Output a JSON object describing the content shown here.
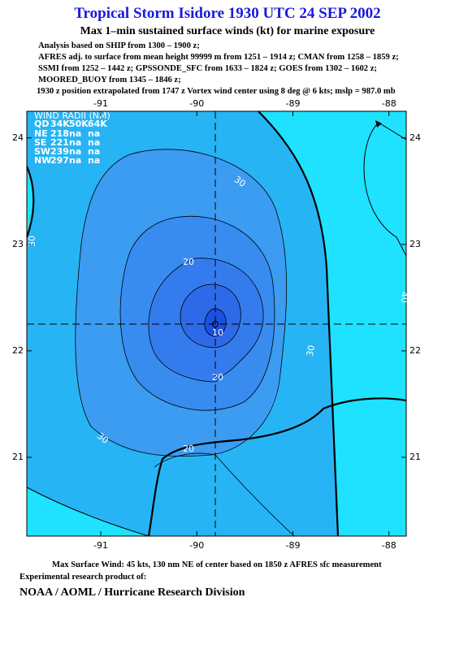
{
  "header": {
    "title": "Tropical Storm Isidore 1930 UTC 24 SEP 2002",
    "subtitle": "Max 1–min sustained surface winds (kt) for marine exposure",
    "lines": [
      "Analysis based on  SHIP from 1300 – 1900 z;",
      "AFRES adj. to surface from mean height 99999 m from 1251 – 1914 z;  CMAN from 1258 – 1859 z;",
      "SSMI from 1252 – 1442 z;  GPSSONDE_SFC from 1633 – 1824 z;  GOES from 1302 – 1602 z;",
      "MOORED_BUOY from 1345 – 1846 z;",
      "1930 z position extrapolated from 1747 z Vortex wind center using 8 deg @ 6 kts; mslp = 987.0 mb"
    ]
  },
  "map": {
    "xlim": [
      -91.77,
      -87.82
    ],
    "ylim": [
      20.26,
      24.25
    ],
    "xticks": [
      -91,
      -90,
      -89,
      -88
    ],
    "yticks": [
      24,
      23,
      22,
      21
    ],
    "wind_radii": {
      "title": "WIND RADII (NM)",
      "columns": [
        "QD",
        "34K",
        "50K",
        "64K"
      ],
      "rows": [
        [
          "NE",
          218,
          "na",
          "na"
        ],
        [
          "SE",
          221,
          "na",
          "na"
        ],
        [
          "SW",
          239,
          "na",
          "na"
        ],
        [
          "NW",
          297,
          "na",
          "na"
        ]
      ]
    },
    "contour_labels": [
      30,
      30,
      20,
      10,
      20,
      30,
      30,
      20,
      40
    ]
  },
  "footer": {
    "max_wind": "Max Surface Wind: 45 kts, 130 nm NE of center based on 1850 z AFRES sfc measurement",
    "credit": "Experimental research product of:",
    "org": "NOAA / AOML / Hurricane Research Division"
  }
}
